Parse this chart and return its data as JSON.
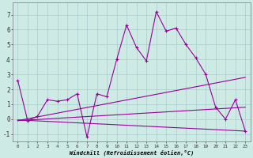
{
  "background_color": "#ceeae4",
  "grid_color": "#aacccc",
  "line_color": "#990099",
  "xlabel": "Windchill (Refroidissement éolien,°C)",
  "xlim": [
    -0.5,
    23.5
  ],
  "ylim": [
    -1.5,
    7.8
  ],
  "yticks": [
    -1,
    0,
    1,
    2,
    3,
    4,
    5,
    6,
    7
  ],
  "xticks": [
    0,
    1,
    2,
    3,
    4,
    5,
    6,
    7,
    8,
    9,
    10,
    11,
    12,
    13,
    14,
    15,
    16,
    17,
    18,
    19,
    20,
    21,
    22,
    23
  ],
  "series1_x": [
    0,
    1,
    2,
    3,
    4,
    5,
    6,
    7,
    8,
    9,
    10,
    11,
    12,
    13,
    14,
    15,
    16,
    17,
    18,
    19,
    20,
    21,
    22,
    23
  ],
  "series1_y": [
    2.6,
    -0.1,
    0.2,
    1.3,
    1.2,
    1.3,
    1.7,
    -1.2,
    1.7,
    1.5,
    4.0,
    6.3,
    4.8,
    3.9,
    7.2,
    5.9,
    6.1,
    5.0,
    4.1,
    3.0,
    0.8,
    0.0,
    1.3,
    -0.8
  ],
  "series2_x": [
    0,
    23
  ],
  "series2_y": [
    -0.1,
    2.8
  ],
  "series3_x": [
    0,
    23
  ],
  "series3_y": [
    -0.1,
    0.8
  ],
  "series4_x": [
    0,
    23
  ],
  "series4_y": [
    -0.05,
    -0.8
  ]
}
